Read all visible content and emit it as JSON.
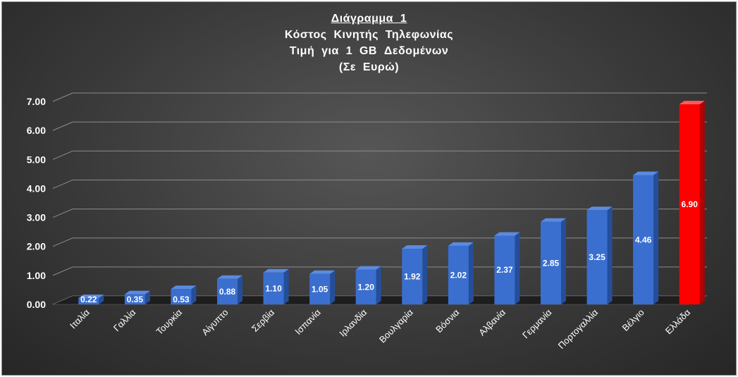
{
  "chart_data": {
    "type": "bar",
    "title": "Διάγραμμα  1",
    "subtitle_lines": [
      "Κόστος  Κινητής  Τηλεφωνίας",
      "Τιμή  για  1  GB  Δεδομένων",
      "(Σε  Ευρώ)"
    ],
    "xlabel": "",
    "ylabel": "",
    "ylim": [
      0,
      7
    ],
    "yticks": [
      "0.00",
      "1.00",
      "2.00",
      "3.00",
      "4.00",
      "5.00",
      "6.00",
      "7.00"
    ],
    "grid": true,
    "legend": "none",
    "categories": [
      "Ιταλία",
      "Γαλλία",
      "Τουρκία",
      "Αίγυπτο",
      "Σερβία",
      "Ισπανία",
      "Ιρλανδία",
      "Βουλγαρία",
      "Βόσνια",
      "Αλβανία",
      "Γερμανία",
      "Πορτογαλλία",
      "Βέλγιο",
      "Ελλάδα"
    ],
    "values": [
      0.22,
      0.35,
      0.53,
      0.88,
      1.1,
      1.05,
      1.2,
      1.92,
      2.02,
      2.37,
      2.85,
      3.25,
      4.46,
      6.9
    ],
    "data_labels": [
      "0.22",
      "0.35",
      "0.53",
      "0.88",
      "1.10",
      "1.05",
      "1.20",
      "1.92",
      "2.02",
      "2.37",
      "2.85",
      "3.25",
      "4.46",
      "6.90"
    ],
    "colors": {
      "bar": "#3a6fd0",
      "bar_highlight": "#ff0000",
      "highlight_category": "Ελλάδα",
      "gridline": "#8c8c8c",
      "text": "#ffffff"
    }
  }
}
